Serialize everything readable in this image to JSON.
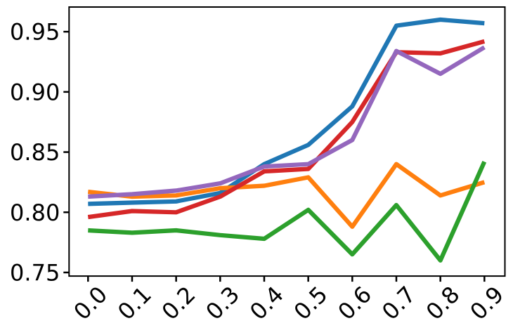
{
  "figure": {
    "background": "#ffffff",
    "border_color": "#000000"
  },
  "chart_data": {
    "type": "line",
    "title": "",
    "xlabel": "",
    "ylabel": "",
    "grid": false,
    "legend": null,
    "x": [
      0.0,
      0.1,
      0.2,
      0.3,
      0.4,
      0.5,
      0.6,
      0.7,
      0.8,
      0.9
    ],
    "x_tick_labels": [
      "0.0",
      "0.1",
      "0.2",
      "0.3",
      "0.4",
      "0.5",
      "0.6",
      "0.7",
      "0.8",
      "0.9"
    ],
    "x_tick_rotation": 45,
    "y_ticks": [
      0.75,
      0.8,
      0.85,
      0.9,
      0.95
    ],
    "y_tick_labels": [
      "0.75",
      "0.80",
      "0.85",
      "0.90",
      "0.95"
    ],
    "ylim": [
      0.747,
      0.9705
    ],
    "series": [
      {
        "name": "blue",
        "color": "#1f77b4",
        "values": [
          0.807,
          0.808,
          0.809,
          0.816,
          0.84,
          0.856,
          0.888,
          0.955,
          0.96,
          0.957
        ]
      },
      {
        "name": "orange",
        "color": "#ff7f0e",
        "values": [
          0.817,
          0.813,
          0.814,
          0.82,
          0.822,
          0.829,
          0.788,
          0.84,
          0.814,
          0.825
        ]
      },
      {
        "name": "green",
        "color": "#2ca02c",
        "values": [
          0.785,
          0.783,
          0.785,
          0.781,
          0.778,
          0.802,
          0.765,
          0.806,
          0.76,
          0.842
        ]
      },
      {
        "name": "red",
        "color": "#d62728",
        "values": [
          0.796,
          0.801,
          0.8,
          0.813,
          0.834,
          0.836,
          0.875,
          0.933,
          0.932,
          0.942
        ]
      },
      {
        "name": "purple",
        "color": "#9467bd",
        "values": [
          0.813,
          0.815,
          0.818,
          0.824,
          0.838,
          0.84,
          0.86,
          0.934,
          0.915,
          0.937
        ]
      }
    ]
  }
}
